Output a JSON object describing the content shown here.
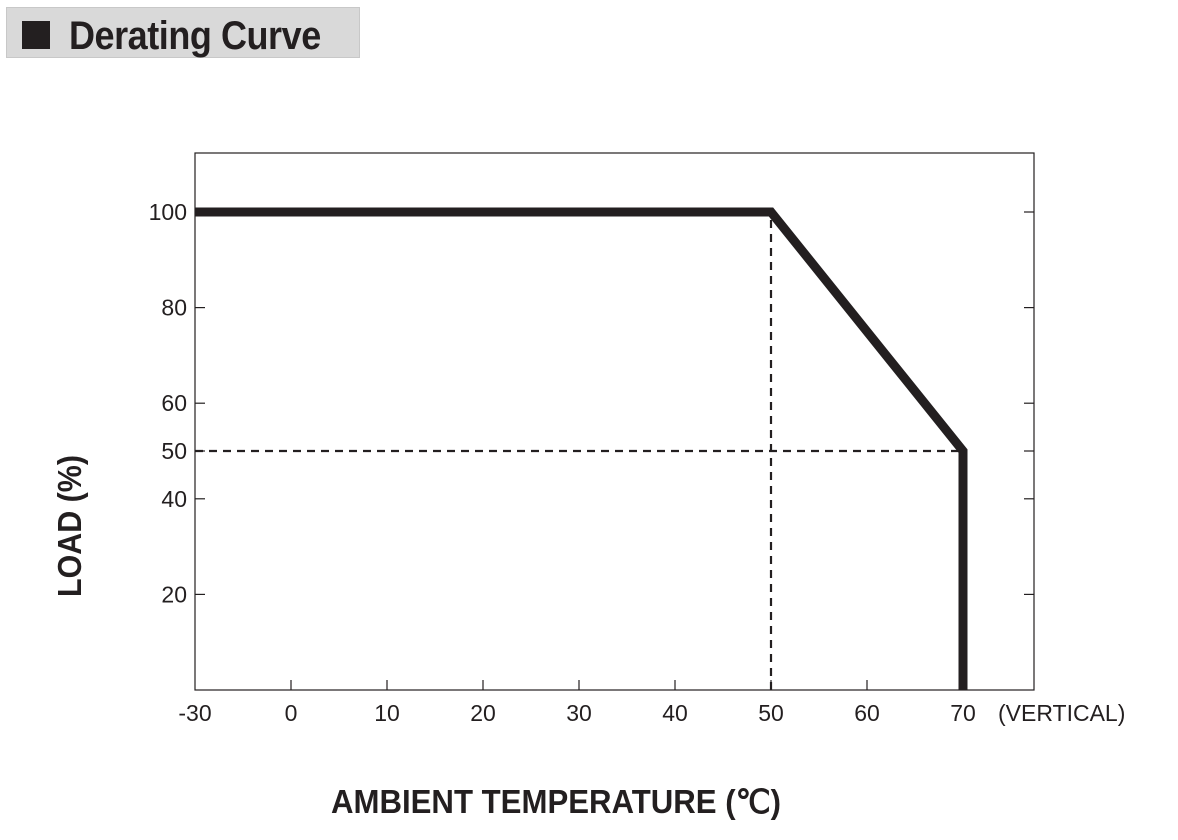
{
  "header": {
    "title": "Derating Curve"
  },
  "colors": {
    "title_background": "#d9d9d9",
    "ink": "#231f20"
  },
  "chart_data": {
    "type": "line",
    "title": "",
    "xlabel": "AMBIENT TEMPERATURE (℃)",
    "ylabel": "LOAD (%)",
    "x_ticks": [
      -30,
      0,
      10,
      20,
      30,
      40,
      50,
      60,
      70
    ],
    "x_tick_labels": [
      "-30",
      "0",
      "10",
      "20",
      "30",
      "40",
      "50",
      "60",
      "70"
    ],
    "x_note": "(VERTICAL)",
    "y_ticks": [
      20,
      40,
      50,
      60,
      80,
      100
    ],
    "y_tick_labels": [
      "20",
      "40",
      "50",
      "60",
      "80",
      "100"
    ],
    "xlim": [
      -30,
      80
    ],
    "ylim": [
      0,
      112
    ],
    "grid": false,
    "series": [
      {
        "x": [
          -30,
          50,
          70,
          70
        ],
        "y": [
          100,
          100,
          50,
          0
        ],
        "style": "solid-thick"
      }
    ],
    "reference_lines": [
      {
        "x": [
          50,
          50
        ],
        "y": [
          0,
          100
        ],
        "style": "dashed"
      },
      {
        "x": [
          -30,
          70
        ],
        "y": [
          50,
          50
        ],
        "style": "dashed"
      }
    ]
  }
}
